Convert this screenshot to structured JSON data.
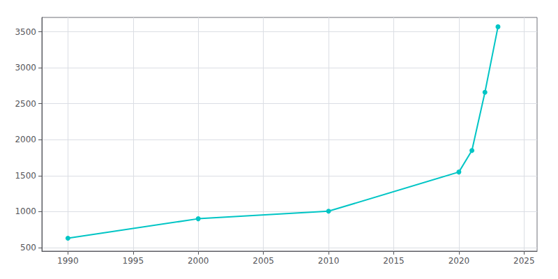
{
  "chart_data": {
    "type": "line",
    "x": [
      1990,
      2000,
      2010,
      2020,
      2021,
      2022,
      2023
    ],
    "values": [
      630,
      900,
      1005,
      1550,
      1850,
      2660,
      3570
    ],
    "color": "#00C5C5",
    "marker": "circle",
    "xlim": [
      1988,
      2026
    ],
    "ylim": [
      450,
      3700
    ],
    "xticks": [
      1990,
      1995,
      2000,
      2005,
      2010,
      2015,
      2020,
      2025
    ],
    "yticks": [
      500,
      1000,
      1500,
      2000,
      2500,
      3000,
      3500
    ],
    "grid": true
  }
}
